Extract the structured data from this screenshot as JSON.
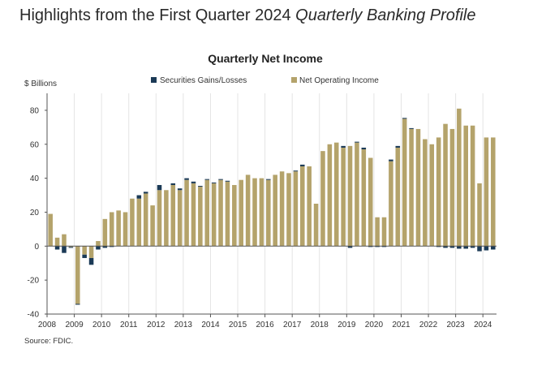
{
  "page": {
    "heading_main": "Highlights from the First Quarter 2024",
    "heading_italic": "Quarterly Banking Profile"
  },
  "colors": {
    "net_operating_income": "#b4a36b",
    "securities": "#1b3a56",
    "axis": "#555555",
    "grid": "#e4e4e4"
  },
  "chart_data": {
    "type": "bar",
    "stacked": true,
    "title": "Quarterly Net Income",
    "ylabel": "$ Billions",
    "source": "Source: FDIC.",
    "ylim": [
      -40,
      90
    ],
    "yticks": [
      -40,
      -20,
      0,
      20,
      40,
      60,
      80
    ],
    "year_labels": [
      "2008",
      "2009",
      "2010",
      "2011",
      "2012",
      "2013",
      "2014",
      "2015",
      "2016",
      "2017",
      "2018",
      "2019",
      "2020",
      "2021",
      "2022",
      "2023",
      "2024"
    ],
    "quarters_start": "2008Q1",
    "series": [
      {
        "name": "Securities Gains/Losses",
        "color": "#1b3a56",
        "values": [
          0,
          -2,
          -4,
          -0.5,
          -0.5,
          -2,
          -4,
          -2,
          -1,
          -0.5,
          0,
          0,
          0,
          2,
          1,
          0,
          3,
          0,
          1,
          1,
          1,
          1,
          0.5,
          0.5,
          0.5,
          0.5,
          0.5,
          0,
          0,
          0,
          0,
          0,
          0.5,
          0,
          0,
          0,
          0.5,
          1,
          0,
          0,
          0,
          0,
          0,
          1,
          -1,
          0.5,
          1,
          -0.5,
          -0.5,
          -0.5,
          1,
          1,
          0.5,
          0.5,
          0,
          0,
          0,
          -0.5,
          -1,
          -1,
          -1.5,
          -1.5,
          -1,
          -3,
          -2.5,
          -2
        ]
      },
      {
        "name": "Net Operating Income",
        "color": "#b4a36b",
        "values": [
          19,
          5,
          7,
          -0.5,
          -34,
          -5,
          -7,
          3,
          16,
          20,
          21,
          20,
          28,
          28,
          31,
          24,
          33,
          33,
          36,
          33,
          39,
          37,
          35,
          39,
          37,
          39,
          38,
          36,
          39,
          42,
          40,
          40,
          39,
          42,
          44,
          43,
          44,
          47,
          47,
          25,
          56,
          60,
          61,
          58,
          59,
          61,
          57,
          52,
          17,
          17,
          50,
          58,
          75,
          69,
          69,
          63,
          60,
          64,
          72,
          69,
          81,
          71,
          71,
          37,
          64,
          64
        ]
      }
    ]
  }
}
